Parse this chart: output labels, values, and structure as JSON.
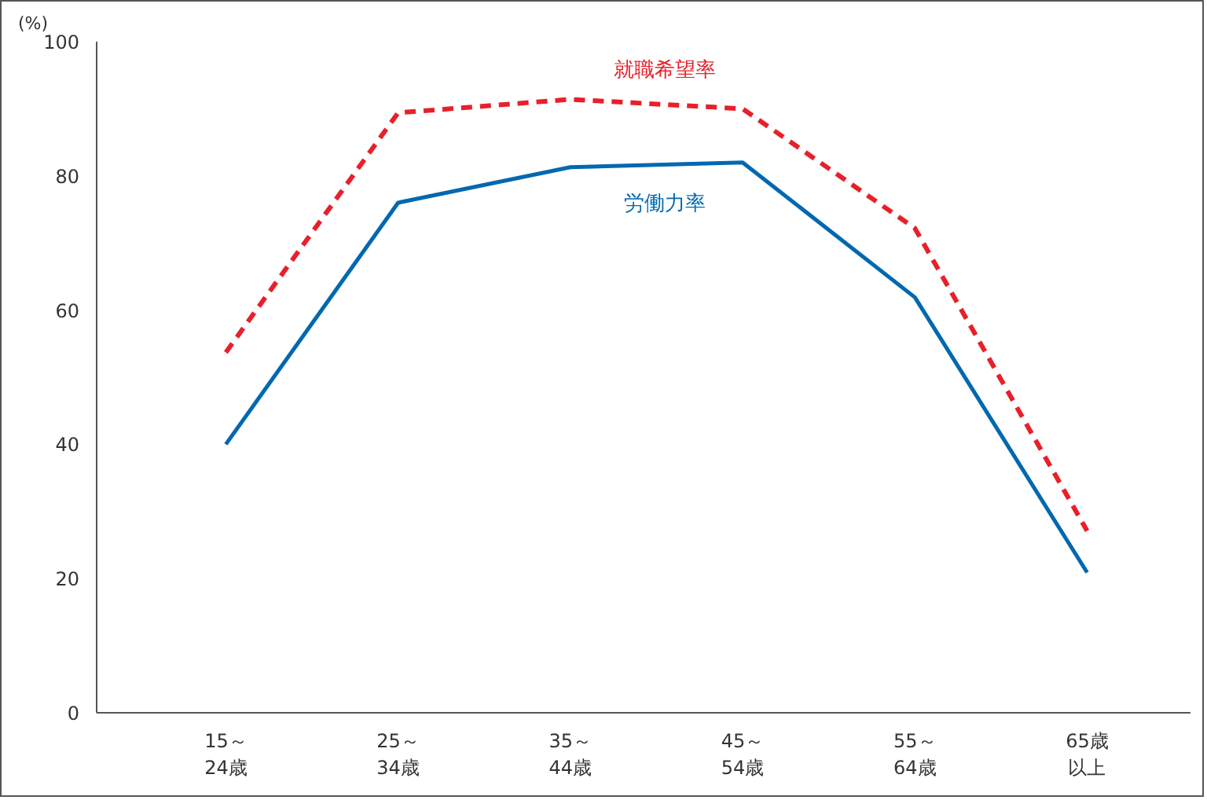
{
  "chart_data": {
    "type": "line",
    "ylabel": "(%)",
    "categories": [
      "15～24歳",
      "25～34歳",
      "35～44歳",
      "45～54歳",
      "55～64歳",
      "65歳以上"
    ],
    "series": [
      {
        "name": "就職希望率",
        "color": "#e8202a",
        "line_style": "dashed",
        "values": [
          53.7,
          89.4,
          91.4,
          90.0,
          72.2,
          27.1
        ]
      },
      {
        "name": "労働力率",
        "color": "#0068b0",
        "line_style": "solid",
        "values": [
          40.0,
          76.0,
          81.3,
          82.0,
          61.9,
          20.9
        ]
      }
    ],
    "ylim": [
      0,
      100
    ],
    "yticks": [
      0,
      20,
      40,
      60,
      80,
      100
    ],
    "grid": false,
    "marker": "none"
  }
}
